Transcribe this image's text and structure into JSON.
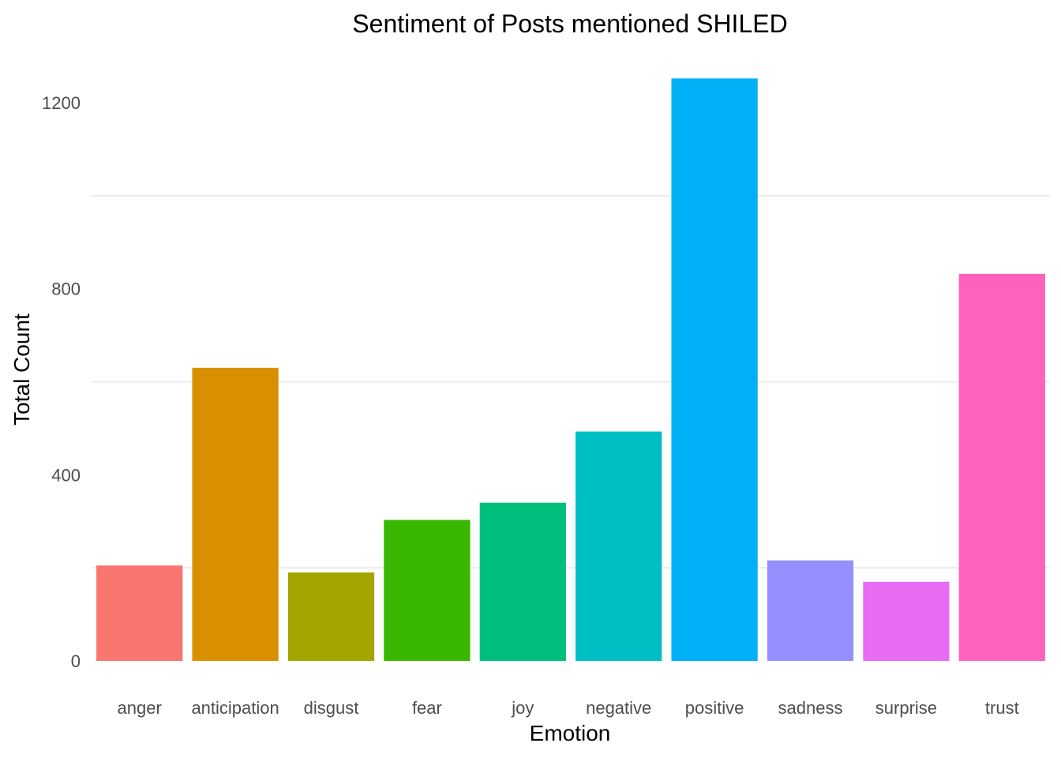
{
  "chart_data": {
    "type": "bar",
    "title": "Sentiment of Posts mentioned SHILED",
    "xlabel": "Emotion",
    "ylabel": "Total Count",
    "categories": [
      "anger",
      "anticipation",
      "disgust",
      "fear",
      "joy",
      "negative",
      "positive",
      "sadness",
      "surprise",
      "trust"
    ],
    "values": [
      205,
      630,
      190,
      303,
      340,
      493,
      1252,
      216,
      170,
      832
    ],
    "colors": [
      "#F8766D",
      "#D89000",
      "#A3A500",
      "#39B600",
      "#00BF7D",
      "#00BFC4",
      "#00B0F6",
      "#9590FF",
      "#E76BF3",
      "#FF62BC"
    ],
    "ylim": [
      0,
      1275
    ],
    "y_ticks": [
      0,
      400,
      800,
      1200
    ],
    "grid": true,
    "legend": "none"
  }
}
